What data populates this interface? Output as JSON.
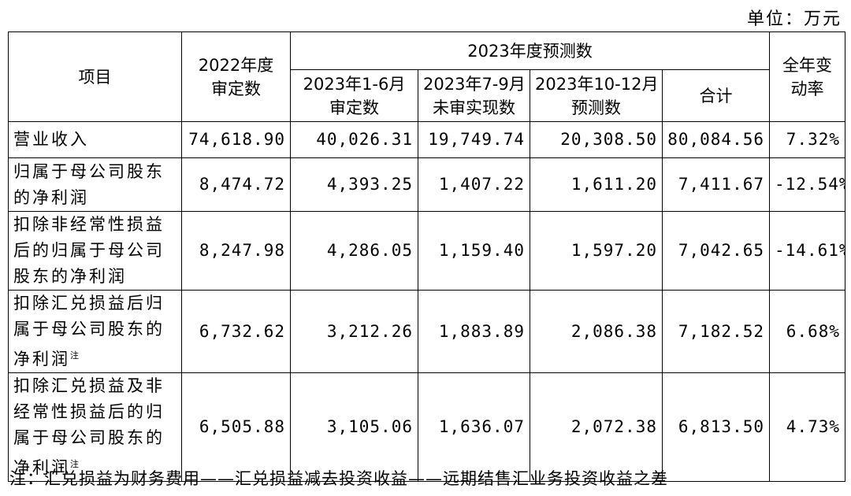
{
  "unit_label": "单位：万元",
  "header": {
    "item": "项目",
    "audited_2022": [
      "2022年度",
      "审定数"
    ],
    "forecast_2023": "2023年度预测数",
    "h1_2023": [
      "2023年1-6月",
      "审定数"
    ],
    "q3_2023": [
      "2023年7-9月",
      "未审实现数"
    ],
    "q4_2023": [
      "2023年10-12月",
      "预测数"
    ],
    "total": "合计",
    "change_rate": [
      "全年变",
      "动率"
    ]
  },
  "rows": [
    {
      "label_lines": [
        "营业收入"
      ],
      "footnote_mark": "",
      "values": [
        "74,618.90",
        "40,026.31",
        "19,749.74",
        "20,308.50",
        "80,084.56",
        "7.32%"
      ]
    },
    {
      "label_lines": [
        "归属于母公司股东",
        "的净利润"
      ],
      "footnote_mark": "",
      "values": [
        "8,474.72",
        "4,393.25",
        "1,407.22",
        "1,611.20",
        "7,411.67",
        "-12.54%"
      ]
    },
    {
      "label_lines": [
        "扣除非经常性损益",
        "后的归属于母公司",
        "股东的净利润"
      ],
      "footnote_mark": "",
      "values": [
        "8,247.98",
        "4,286.05",
        "1,159.40",
        "1,597.20",
        "7,042.65",
        "-14.61%"
      ]
    },
    {
      "label_lines": [
        "扣除汇兑损益后归",
        "属于母公司股东的",
        "净利润"
      ],
      "footnote_mark": "注",
      "values": [
        "6,732.62",
        "3,212.26",
        "1,883.89",
        "2,086.38",
        "7,182.52",
        "6.68%"
      ]
    },
    {
      "label_lines": [
        "扣除汇兑损益及非",
        "经常性损益后的归",
        "属于母公司股东的",
        "净利润"
      ],
      "footnote_mark": "注",
      "values": [
        "6,505.88",
        "3,105.06",
        "1,636.07",
        "2,072.38",
        "6,813.50",
        "4.73%"
      ]
    }
  ],
  "footnote": "注：汇兑损益为财务费用——汇兑损益减去投资收益——远期结售汇业务投资收益之差"
}
